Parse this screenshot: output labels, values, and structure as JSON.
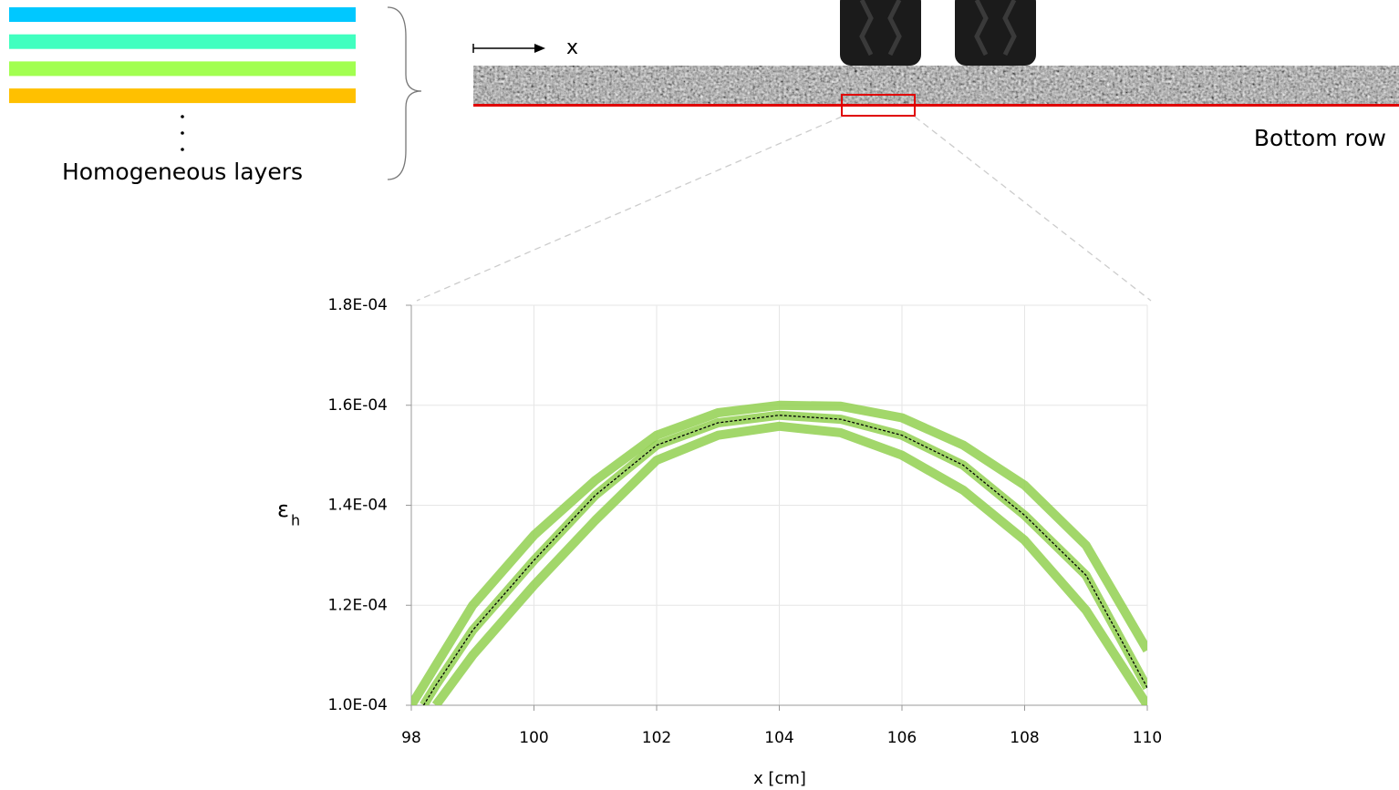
{
  "diagram": {
    "layers_label": "Homogeneous layers",
    "axis_label": "x",
    "bottom_label": "Bottom row",
    "layer_colors": [
      "#00c8ff",
      "#40ffbf",
      "#a2ff50",
      "#ffc000"
    ]
  },
  "chart_data": {
    "type": "line",
    "x_label": "x [cm]",
    "y_label": "ε",
    "y_label_subscript": "h",
    "x": [
      98,
      98.2,
      98.4,
      99,
      100,
      101,
      102,
      103,
      104,
      105,
      106,
      107,
      108,
      109,
      110
    ],
    "series": [
      {
        "color": "#92d050",
        "values": [
          0.0001,
          0.000104,
          0.000108,
          0.00012,
          0.000134,
          0.000145,
          0.000154,
          0.0001585,
          0.00016,
          0.0001598,
          0.0001575,
          0.000152,
          0.000144,
          0.000132,
          0.000111
        ]
      },
      {
        "color": "#92d050",
        "values": [
          null,
          0.0001,
          0.000104,
          0.000115,
          0.000129,
          0.000142,
          0.000152,
          0.0001565,
          0.000158,
          0.0001572,
          0.000154,
          0.000148,
          0.000138,
          0.000126,
          0.0001035
        ]
      },
      {
        "color": "#92d050",
        "values": [
          null,
          null,
          0.0001,
          0.00011,
          0.000124,
          0.000137,
          0.000149,
          0.000154,
          0.0001558,
          0.0001545,
          0.00015,
          0.000143,
          0.000133,
          0.000119,
          0.0001
        ]
      },
      {
        "color": "#000000",
        "dashed": true,
        "values": [
          null,
          0.0001,
          0.000104,
          0.000115,
          0.000129,
          0.000142,
          0.000152,
          0.0001565,
          0.000158,
          0.0001572,
          0.000154,
          0.000148,
          0.000138,
          0.000126,
          0.0001035
        ]
      }
    ],
    "xlim": [
      98,
      110
    ],
    "xticks": [
      98,
      100,
      102,
      104,
      106,
      108,
      110
    ],
    "ylim": [
      0.0001,
      0.00018
    ],
    "yticks": [
      {
        "value": 0.0001,
        "label": "1.0E-04"
      },
      {
        "value": 0.00012,
        "label": "1.2E-04"
      },
      {
        "value": 0.00014,
        "label": "1.4E-04"
      },
      {
        "value": 0.00016,
        "label": "1.6E-04"
      },
      {
        "value": 0.00018,
        "label": "1.8E-04"
      }
    ],
    "grid": true
  }
}
